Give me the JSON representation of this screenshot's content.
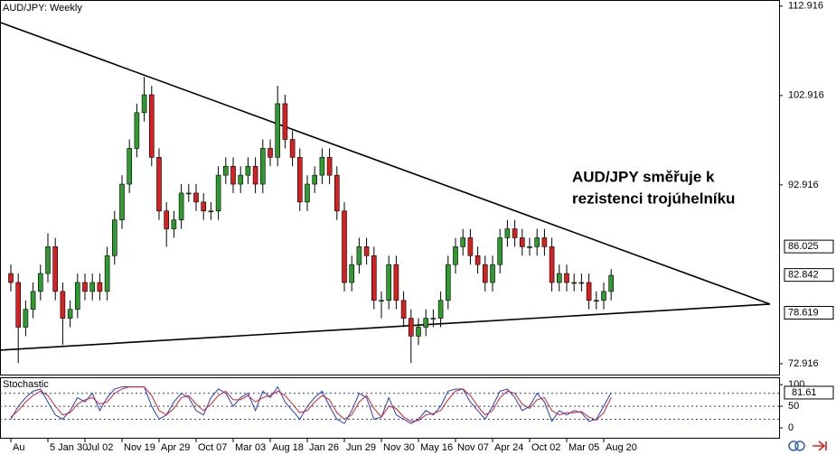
{
  "chart_data": [
    {
      "type": "candlestick",
      "title": "AUD/JPY: Weekly",
      "annotation": [
        "AUD/JPY směřuje k",
        "rezistenci trojúhelníku"
      ],
      "categories": [
        "Au",
        null,
        null,
        null,
        null,
        "5 Jan 30",
        null,
        null,
        null,
        null,
        "Jul 02",
        null,
        null,
        null,
        null,
        "Nov 19",
        null,
        null,
        null,
        null,
        "Apr 29",
        null,
        null,
        null,
        null,
        "Oct 07",
        null,
        null,
        null,
        null,
        "Mar 03",
        null,
        null,
        null,
        null,
        "Aug 18",
        null,
        null,
        null,
        null,
        "Jan 26",
        null,
        null,
        null,
        null,
        "Jun 29",
        null,
        null,
        null,
        null,
        "Nov 30",
        null,
        null,
        null,
        null,
        "May 16",
        null,
        null,
        null,
        null,
        "Nov 07",
        null,
        null,
        null,
        null,
        "Apr 24",
        null,
        null,
        null,
        null,
        "Oct 02",
        null,
        null,
        null,
        null,
        "Mar 05",
        null,
        null,
        null,
        null,
        "Aug 20",
        null
      ],
      "open": [
        83,
        82,
        77,
        79,
        81,
        83,
        86,
        81,
        78,
        79,
        82,
        81,
        82,
        81,
        85,
        89,
        93,
        97,
        101,
        103,
        96,
        90,
        88,
        89,
        92,
        92,
        91,
        90,
        90,
        94,
        95,
        93,
        94,
        95,
        93,
        97,
        96,
        102,
        98,
        96,
        91,
        93,
        94,
        96,
        94,
        90,
        82,
        84,
        86,
        85,
        80,
        80,
        84,
        80,
        78,
        76,
        77,
        78,
        78,
        80,
        84,
        86,
        87,
        85,
        84,
        82,
        84,
        87,
        88,
        87,
        86,
        86,
        87,
        86,
        82,
        83,
        82,
        82,
        82,
        80,
        80,
        81
      ],
      "high": [
        84,
        83,
        80,
        82,
        84,
        87.5,
        87,
        82,
        80,
        83,
        83,
        83,
        83,
        86,
        90,
        94,
        98,
        102,
        105,
        104,
        97,
        91,
        90,
        93,
        93,
        93,
        92,
        91,
        95,
        96,
        96,
        95,
        96,
        96,
        98,
        98,
        104,
        103,
        99,
        97,
        94,
        95,
        97,
        97,
        95,
        91,
        85,
        87,
        87,
        86,
        81,
        85,
        85,
        81,
        79,
        78,
        79,
        79,
        81,
        85,
        87,
        88,
        88,
        86,
        85,
        85,
        88,
        89,
        89,
        88,
        87,
        88,
        88,
        87,
        84,
        84,
        83,
        83,
        83,
        81,
        82,
        83.5
      ],
      "low": [
        81,
        73,
        76,
        78,
        80,
        82,
        80,
        75,
        77,
        78,
        80,
        80,
        80,
        80,
        84,
        88,
        92,
        96,
        100,
        95,
        89,
        86,
        87,
        88,
        91,
        90,
        89,
        89,
        89,
        93,
        92,
        92,
        93,
        92,
        92,
        95,
        95,
        97,
        95,
        90,
        90,
        92,
        93,
        93,
        89,
        81,
        81,
        83,
        84,
        79,
        78,
        79,
        79,
        77,
        73,
        75,
        76,
        77,
        77,
        79,
        83,
        85,
        84,
        83,
        81,
        81,
        83,
        86,
        86,
        85,
        85,
        85,
        85,
        81,
        81,
        81,
        81,
        81,
        79,
        79,
        79,
        80
      ],
      "close": [
        82,
        77,
        79,
        81,
        83,
        86,
        81,
        78,
        79,
        82,
        81,
        82,
        81,
        85,
        89,
        93,
        97,
        101,
        103,
        96,
        90,
        88,
        89,
        92,
        92,
        91,
        90,
        90,
        94,
        95,
        93,
        94,
        95,
        93,
        97,
        96,
        102,
        98,
        96,
        91,
        93,
        94,
        96,
        94,
        90,
        82,
        84,
        86,
        85,
        80,
        80,
        84,
        80,
        78,
        76,
        77,
        78,
        78,
        80,
        84,
        86,
        87,
        85,
        84,
        82,
        84,
        87,
        88,
        87,
        86,
        86,
        87,
        86,
        82,
        83,
        82,
        82,
        82,
        80,
        80,
        81,
        82.8
      ],
      "up_color": "#2e9b2e",
      "down_color": "#d92020",
      "trendlines": [
        {
          "start": 111.1,
          "end": 79.58
        },
        {
          "start": 74.43,
          "end": 79.58
        }
      ],
      "price_labels": [
        86.025,
        82.842,
        78.619
      ],
      "ylim": [
        71.7,
        113.6
      ],
      "yticks": [
        112.916,
        102.916,
        92.916,
        72.916
      ]
    },
    {
      "type": "line",
      "title": "Stochastic",
      "series": [
        {
          "color": "#1f3fd0",
          "values": [
            20,
            50,
            70,
            85,
            90,
            60,
            30,
            20,
            40,
            70,
            60,
            80,
            40,
            70,
            90,
            95,
            95,
            95,
            95,
            50,
            20,
            30,
            60,
            80,
            70,
            40,
            30,
            70,
            90,
            80,
            50,
            70,
            80,
            40,
            85,
            70,
            95,
            60,
            40,
            20,
            50,
            70,
            85,
            50,
            20,
            10,
            40,
            80,
            70,
            20,
            25,
            70,
            30,
            20,
            10,
            20,
            40,
            30,
            50,
            85,
            90,
            90,
            60,
            40,
            20,
            50,
            85,
            90,
            70,
            40,
            50,
            80,
            60,
            15,
            40,
            30,
            40,
            35,
            15,
            20,
            50,
            81.61
          ]
        },
        {
          "color": "#d92020",
          "values": [
            25,
            40,
            60,
            75,
            85,
            75,
            50,
            30,
            35,
            55,
            65,
            70,
            55,
            60,
            80,
            90,
            95,
            95,
            95,
            75,
            40,
            30,
            45,
            70,
            75,
            55,
            40,
            55,
            75,
            85,
            65,
            65,
            75,
            60,
            70,
            75,
            85,
            75,
            55,
            35,
            40,
            60,
            75,
            65,
            35,
            20,
            30,
            60,
            75,
            45,
            25,
            50,
            45,
            25,
            15,
            17,
            30,
            33,
            40,
            65,
            85,
            90,
            75,
            50,
            30,
            40,
            70,
            85,
            80,
            55,
            45,
            65,
            70,
            40,
            30,
            35,
            35,
            38,
            25,
            18,
            35,
            70
          ]
        }
      ],
      "levels": [
        80,
        50,
        20
      ],
      "current_label": 81.61,
      "ylim": [
        -25,
        115
      ],
      "yticks": [
        100,
        50,
        0
      ]
    }
  ]
}
